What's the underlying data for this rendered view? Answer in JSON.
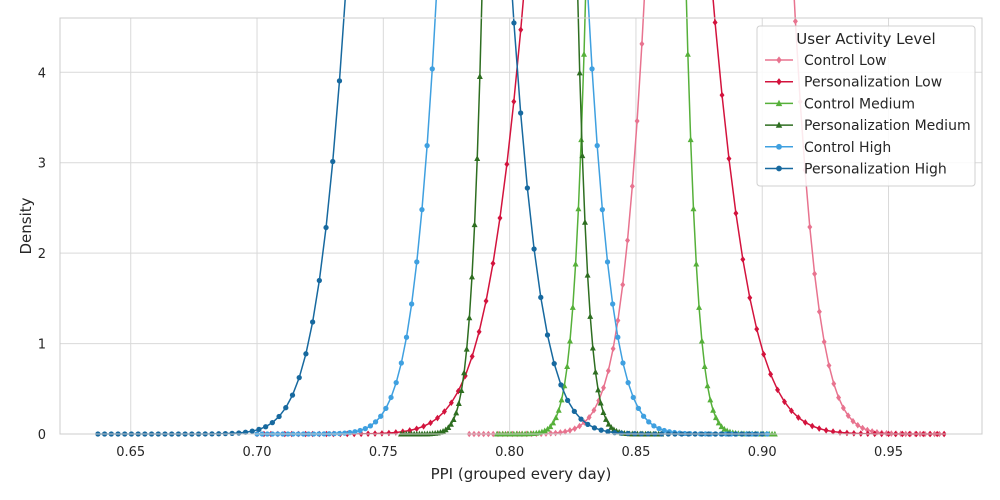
{
  "chart_data": {
    "type": "line",
    "xlabel": "PPI (grouped every day)",
    "ylabel": "Density",
    "xlim": [
      0.622,
      0.987
    ],
    "ylim": [
      0,
      4.6
    ],
    "xticks": [
      0.65,
      0.7,
      0.75,
      0.8,
      0.85,
      0.9,
      0.95
    ],
    "xtick_labels": [
      "0.65",
      "0.70",
      "0.75",
      "0.80",
      "0.85",
      "0.90",
      "0.95"
    ],
    "yticks": [
      0,
      1,
      2,
      3,
      4
    ],
    "ytick_labels": [
      "0",
      "1",
      "2",
      "3",
      "4"
    ],
    "grid": true,
    "legend": {
      "title": "User Activity Level",
      "placement": "top-right"
    },
    "series": [
      {
        "name": "Control Low",
        "color": "#e8738f",
        "marker": "diamond",
        "mean": 0.883,
        "sd": 0.0165,
        "x_start": 0.784,
        "x_end": 0.972,
        "points": 100
      },
      {
        "name": "Personalization Low",
        "color": "#d3133d",
        "marker": "diamond",
        "mean": 0.843,
        "sd": 0.0237,
        "x_start": 0.7,
        "x_end": 0.972,
        "points": 100
      },
      {
        "name": "Control Medium",
        "color": "#56b03a",
        "marker": "triangle",
        "mean": 0.85,
        "sd": 0.0096,
        "x_start": 0.795,
        "x_end": 0.905,
        "points": 100
      },
      {
        "name": "Personalization Medium",
        "color": "#2e6e21",
        "marker": "triangle",
        "mean": 0.808,
        "sd": 0.009,
        "x_start": 0.757,
        "x_end": 0.86,
        "points": 100
      },
      {
        "name": "Control High",
        "color": "#3fa0e0",
        "marker": "circle",
        "mean": 0.801,
        "sd": 0.0168,
        "x_start": 0.7,
        "x_end": 0.902,
        "points": 100
      },
      {
        "name": "Personalization High",
        "color": "#17699f",
        "marker": "circle",
        "mean": 0.768,
        "sd": 0.0194,
        "x_start": 0.637,
        "x_end": 0.9,
        "points": 100
      }
    ]
  }
}
